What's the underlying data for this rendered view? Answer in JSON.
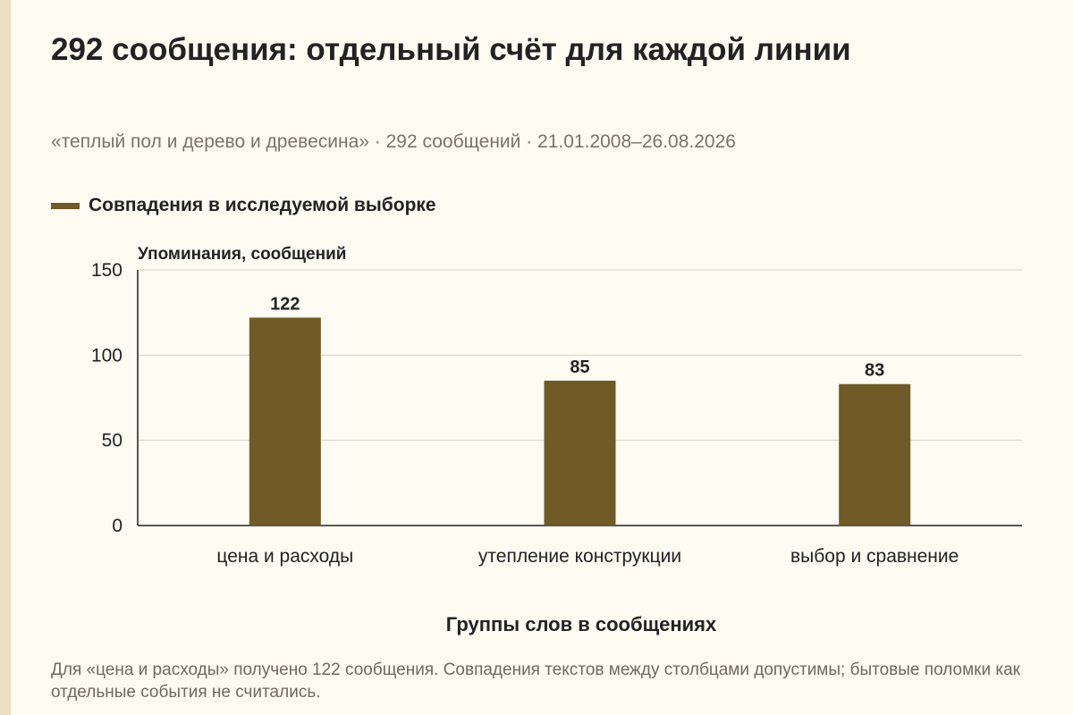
{
  "title": "292 сообщения: отдельный счёт для каждой линии",
  "subtitle": "«теплый пол и дерево и древесина» · 292 сообщений · 21.01.2008–26.08.2026",
  "footnote": "Для «цена и расходы» получено 122 сообщения. Совпадения текстов между столбцами допустимы; бытовые поломки как отдельные события не считались.",
  "colors": {
    "bar": "#705a28",
    "background": "#fdfbf2",
    "stripe": "#ebe1c1",
    "grid": "#d9d4c4"
  },
  "chart_data": {
    "type": "bar",
    "title": "292 сообщения: отдельный счёт для каждой линии",
    "xlabel": "Группы слов в сообщениях",
    "ylabel": "Упоминания, сообщений",
    "categories": [
      "цена и расходы",
      "утепление конструкции",
      "выбор и сравнение"
    ],
    "series": [
      {
        "name": "Совпадения в исследуемой выборке",
        "values": [
          122,
          85,
          83
        ]
      }
    ],
    "ylim": [
      0,
      150
    ],
    "yticks": [
      0,
      50,
      100,
      150
    ],
    "grid": true,
    "legend": "top-left",
    "data_labels": true
  }
}
